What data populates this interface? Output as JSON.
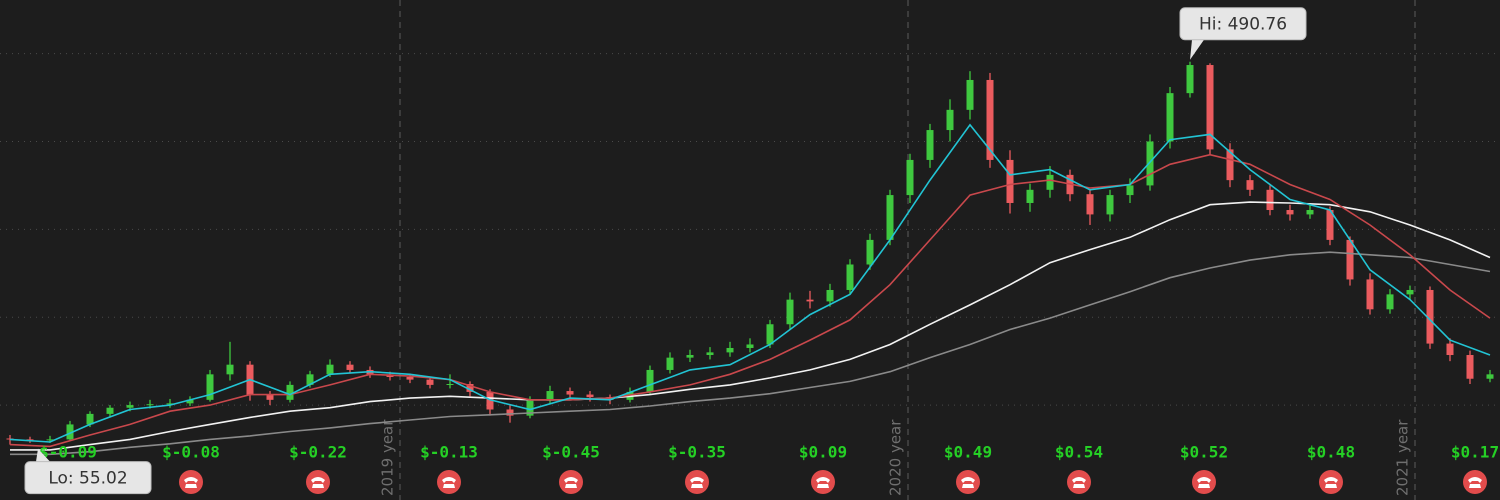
{
  "chart_data": {
    "type": "candlestick",
    "x": [
      1,
      3,
      5,
      7,
      9,
      11,
      13,
      15,
      17,
      19,
      21,
      23,
      25,
      27,
      29,
      31,
      33,
      35,
      37,
      39,
      41,
      43,
      45,
      47,
      49,
      51,
      53,
      55,
      57,
      59,
      61,
      63,
      65,
      67,
      69,
      71,
      73,
      75,
      77,
      79,
      81,
      83,
      85,
      87,
      89,
      91,
      93,
      95,
      97,
      99,
      101,
      103,
      105,
      107,
      109,
      111,
      113,
      115,
      117,
      119,
      121,
      123,
      125,
      127,
      129,
      131,
      133,
      135,
      137,
      139,
      141,
      143,
      145,
      147,
      149
    ],
    "open": [
      62,
      61,
      60,
      61,
      78,
      90,
      97,
      100,
      101,
      102,
      106,
      135,
      146,
      112,
      106,
      123,
      135,
      146,
      140,
      135,
      132,
      129,
      123,
      124,
      115,
      95,
      88,
      105,
      116,
      112,
      109,
      106,
      115,
      140,
      154,
      157,
      160,
      165,
      169,
      192,
      220,
      218,
      231,
      260,
      288,
      339,
      379,
      413,
      436,
      470,
      379,
      330,
      345,
      362,
      340,
      317,
      339,
      350,
      400,
      455,
      487,
      391,
      356,
      345,
      322,
      317,
      322,
      288,
      243,
      209,
      226,
      231,
      170,
      157,
      130
    ],
    "high": [
      66,
      64,
      65,
      82,
      93,
      100,
      104,
      106,
      107,
      110,
      140,
      172,
      150,
      116,
      127,
      139,
      152,
      150,
      144,
      138,
      136,
      132,
      135,
      127,
      118,
      100,
      110,
      122,
      120,
      116,
      112,
      120,
      145,
      160,
      163,
      166,
      172,
      176,
      197,
      228,
      230,
      238,
      266,
      295,
      345,
      386,
      420,
      448,
      480,
      478,
      390,
      352,
      372,
      368,
      346,
      345,
      358,
      408,
      462,
      490.76,
      489,
      398,
      362,
      350,
      328,
      330,
      326,
      292,
      250,
      232,
      236,
      235,
      176,
      162,
      140
    ],
    "low": [
      55.02,
      57,
      57,
      60,
      75,
      86,
      93,
      96,
      97,
      99,
      104,
      128,
      105,
      100,
      103,
      120,
      132,
      136,
      131,
      128,
      125,
      119,
      119,
      110,
      88,
      80,
      85,
      102,
      107,
      104,
      101,
      103,
      112,
      136,
      149,
      152,
      155,
      160,
      165,
      186,
      210,
      212,
      226,
      254,
      282,
      330,
      370,
      400,
      425,
      370,
      318,
      320,
      336,
      332,
      305,
      309,
      330,
      344,
      392,
      450,
      385,
      348,
      338,
      316,
      310,
      312,
      282,
      236,
      203,
      204,
      220,
      164,
      150,
      124,
      126
    ],
    "close": [
      61,
      60,
      61,
      78,
      90,
      97,
      100,
      101,
      102,
      106,
      135,
      146,
      112,
      106,
      123,
      135,
      146,
      140,
      135,
      132,
      129,
      123,
      124,
      115,
      95,
      88,
      105,
      116,
      112,
      109,
      106,
      115,
      140,
      154,
      157,
      160,
      165,
      169,
      192,
      220,
      218,
      231,
      260,
      288,
      339,
      379,
      413,
      436,
      470,
      379,
      330,
      345,
      362,
      340,
      317,
      339,
      350,
      400,
      455,
      487,
      391,
      356,
      345,
      322,
      317,
      322,
      288,
      243,
      209,
      226,
      231,
      170,
      157,
      130,
      135
    ],
    "up_color": "#3fc83f",
    "down_color": "#ea5b5e",
    "ma_x": [
      1,
      5,
      9,
      13,
      17,
      21,
      25,
      29,
      33,
      37,
      41,
      45,
      49,
      53,
      57,
      61,
      65,
      69,
      73,
      77,
      81,
      85,
      89,
      93,
      97,
      101,
      105,
      109,
      113,
      117,
      121,
      125,
      129,
      133,
      137,
      141,
      145,
      149
    ],
    "moving_averages": [
      {
        "color": "#8a8a8a",
        "values": [
          44,
          44,
          47,
          52,
          56,
          61,
          65,
          70,
          74,
          79,
          83,
          87,
          89,
          91,
          93,
          95,
          99,
          104,
          108,
          113,
          120,
          127,
          138,
          154,
          169,
          186,
          199,
          214,
          229,
          245,
          256,
          265,
          271,
          274,
          271,
          268,
          260,
          252
        ]
      },
      {
        "color": "#f2f2f2",
        "values": [
          49,
          49,
          55,
          61,
          70,
          78,
          86,
          93,
          97,
          104,
          108,
          110,
          108,
          106,
          106,
          108,
          112,
          118,
          123,
          131,
          140,
          152,
          169,
          192,
          214,
          237,
          262,
          277,
          291,
          311,
          328,
          331,
          330,
          328,
          320,
          305,
          288,
          268
        ]
      },
      {
        "color": "#c9484c",
        "values": [
          55,
          53,
          66,
          78,
          93,
          100,
          112,
          112,
          123,
          135,
          133,
          129,
          115,
          106,
          106,
          108,
          115,
          123,
          135,
          152,
          174,
          197,
          237,
          288,
          339,
          351,
          356,
          347,
          351,
          374,
          385,
          374,
          351,
          334,
          305,
          271,
          231,
          199
        ]
      },
      {
        "color": "#22c4d4",
        "values": [
          61,
          58,
          78,
          95,
          100,
          112,
          129,
          112,
          135,
          138,
          135,
          129,
          106,
          95,
          108,
          106,
          123,
          140,
          146,
          169,
          203,
          226,
          288,
          356,
          419,
          362,
          368,
          345,
          351,
          402,
          408,
          368,
          334,
          322,
          254,
          220,
          174,
          157
        ]
      }
    ],
    "xlim": [
      0,
      150
    ],
    "ylim": [
      -8,
      561
    ],
    "yticks": [
      100,
      200,
      300,
      400,
      500
    ],
    "grid": true,
    "xticks": [
      {
        "value": 40,
        "label": "2019 year"
      },
      {
        "value": 90.8,
        "label": "2020 year"
      },
      {
        "value": 141.5,
        "label": "2021 year"
      }
    ],
    "events": [
      {
        "x": 6.8,
        "label": "$-0.09"
      },
      {
        "x": 19.1,
        "label": "$-0.08"
      },
      {
        "x": 31.8,
        "label": "$-0.22"
      },
      {
        "x": 44.9,
        "label": "$-0.13"
      },
      {
        "x": 57.1,
        "label": "$-0.45"
      },
      {
        "x": 69.7,
        "label": "$-0.35"
      },
      {
        "x": 82.3,
        "label": "$0.09"
      },
      {
        "x": 96.8,
        "label": "$0.49"
      },
      {
        "x": 107.9,
        "label": "$0.54"
      },
      {
        "x": 120.4,
        "label": "$0.52"
      },
      {
        "x": 133.1,
        "label": "$0.48"
      },
      {
        "x": 147.5,
        "label": "$0.17"
      }
    ],
    "event_color": "#25d025",
    "annotations": [
      {
        "label": "Hi: 490.76",
        "value": 490.76,
        "x": 119,
        "side": "top"
      },
      {
        "label": "Lo: 55.02",
        "value": 55.02,
        "x": 1,
        "side": "bottom"
      }
    ]
  }
}
